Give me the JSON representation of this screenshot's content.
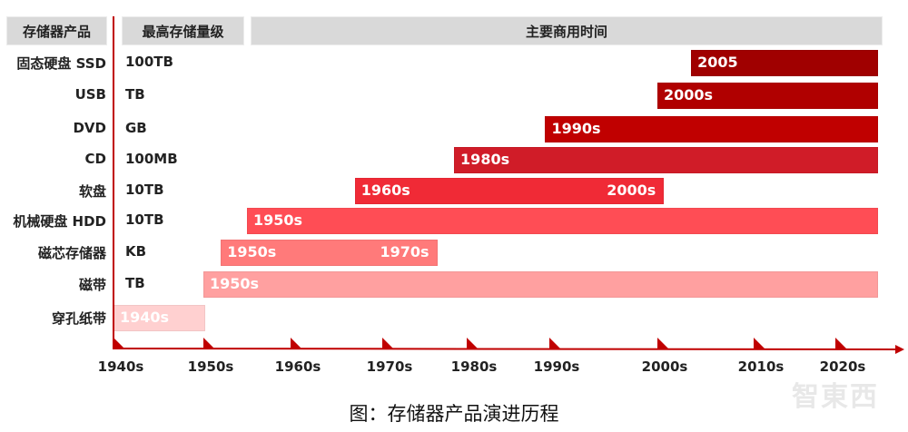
{
  "chart_data": {
    "type": "timeline",
    "title": "图：存储器产品演进历程",
    "headers": {
      "product": "存储器产品",
      "capacity": "最高存储量级",
      "time": "主要商用时间"
    },
    "ticks": [
      "1940s",
      "1950s",
      "1960s",
      "1970s",
      "1980s",
      "1990s",
      "2000s",
      "2010s",
      "2020s"
    ],
    "rows": [
      {
        "name": "固态硬盘 SSD",
        "capacity": "100TB",
        "start": 2003.5,
        "end": 2025,
        "labels": [
          "2005"
        ],
        "color": "#a00000"
      },
      {
        "name": "USB",
        "capacity": "TB",
        "start": 2000,
        "end": 2025,
        "labels": [
          "2000s"
        ],
        "color": "#b00000"
      },
      {
        "name": "DVD",
        "capacity": "GB",
        "start": 1989.5,
        "end": 2025,
        "labels": [
          "1990s"
        ],
        "color": "#c00000"
      },
      {
        "name": "CD",
        "capacity": "100MB",
        "start": 1978.5,
        "end": 2025,
        "labels": [
          "1980s"
        ],
        "color": "#d01c28"
      },
      {
        "name": "软盘",
        "capacity": "10TB",
        "start": 1967,
        "end": 2000.5,
        "labels": [
          "1960s",
          "2000s"
        ],
        "color": "#f02a36"
      },
      {
        "name": "机械硬盘 HDD",
        "capacity": "10TB",
        "start": 1955,
        "end": 2025,
        "labels": [
          "1950s"
        ],
        "color": "#ff4d55"
      },
      {
        "name": "磁芯存储器",
        "capacity": "KB",
        "start": 1952,
        "end": 1976.3,
        "labels": [
          "1950s",
          "1970s"
        ],
        "color": "#ff7a7a"
      },
      {
        "name": "磁带",
        "capacity": "TB",
        "start": 1950,
        "end": 2025,
        "labels": [
          "1950s"
        ],
        "color": "#ffa0a0"
      },
      {
        "name": "穿孔纸带",
        "capacity": "",
        "start": 1940,
        "end": 1950,
        "labels": [
          "1940s"
        ],
        "color": "#ffd0d0"
      }
    ],
    "axis_color": "#c00000"
  },
  "watermark": "智东西"
}
